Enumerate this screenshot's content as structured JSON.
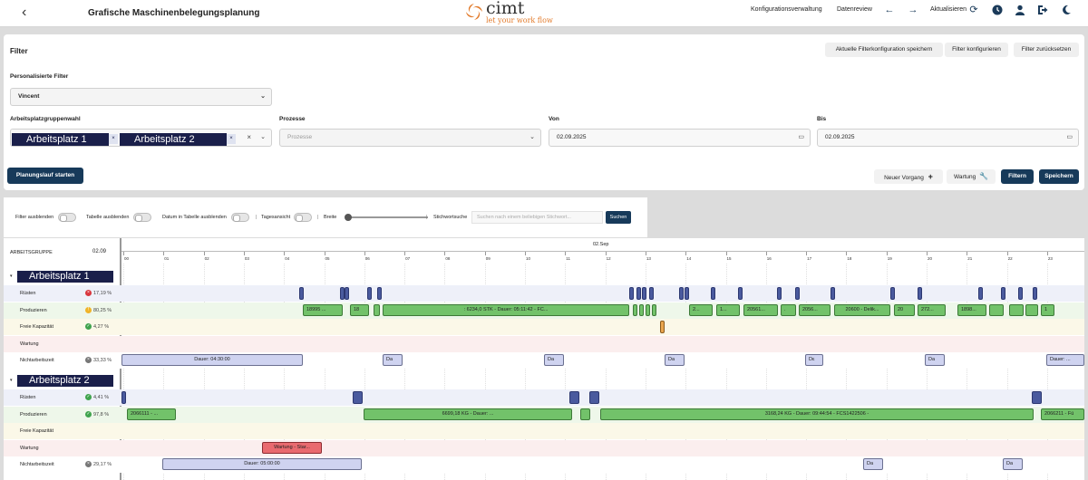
{
  "header": {
    "back_icon": "chevron-left-icon",
    "title": "Grafische Maschinenbelegungsplanung",
    "logo_text": "cimt",
    "logo_tagline": "let your work flow",
    "links": [
      "Konfigurationsverwaltung",
      "Datenreview"
    ],
    "refresh_label": "Aktualisieren"
  },
  "filter": {
    "title": "Filter",
    "btn_save_config": "Aktuelle Filterkonfiguration speichern",
    "btn_configure": "Filter konfigurieren",
    "btn_reset": "Filter zurücksetzen",
    "personal_label": "Personalisierte Filter",
    "personal_value": "Vincent",
    "group_label": "Arbeitsplatzgruppenwahl",
    "group_tags": [
      "Arbeitsplatz 1",
      "Arbeitsplatz 2"
    ],
    "process_label": "Prozesse",
    "process_placeholder": "Prozesse",
    "from_label": "Von",
    "from_value": "02.09.2025",
    "to_label": "Bis",
    "to_value": "02.09.2025",
    "btn_planning": "Planungslauf starten",
    "btn_new": "Neuer Vorgang",
    "btn_maintenance": "Wartung",
    "btn_filter": "Filtern",
    "btn_save": "Speichern"
  },
  "toolbar": {
    "hide_filter": "Filter ausblenden",
    "hide_table": "Tabelle ausblenden",
    "hide_date": "Datum in Tabelle ausblenden",
    "day_view": "Tagesansicht",
    "width": "Breite",
    "keyword_label": "Stichwortsuche",
    "keyword_placeholder": "Suchen nach einem beliebigen Stichwort...",
    "search_button": "Suchen"
  },
  "gantt": {
    "column_header": "ARBEITSGRUPPE",
    "date_short": "02.09",
    "day_label": "02.Sep",
    "hours": [
      "00",
      "01",
      "02",
      "03",
      "04",
      "05",
      "06",
      "07",
      "08",
      "09",
      "10",
      "11",
      "12",
      "13",
      "14",
      "15",
      "16",
      "17",
      "18",
      "19",
      "20",
      "21",
      "22",
      "23"
    ],
    "groups": [
      {
        "name": "Arbeitsplatz 1",
        "rows": [
          {
            "label": "Rüsten",
            "status": "error",
            "pct": "17,19 %"
          },
          {
            "label": "Produzieren",
            "status": "warning",
            "pct": "80,25 %"
          },
          {
            "label": "Freie Kapazität",
            "status": "ok",
            "pct": "4,27 %"
          },
          {
            "label": "Wartung",
            "status": "",
            "pct": ""
          },
          {
            "label": "Nichtarbeitszeit",
            "status": "neutral",
            "pct": "33,33 %"
          }
        ]
      },
      {
        "name": "Arbeitsplatz 2",
        "rows": [
          {
            "label": "Rüsten",
            "status": "ok",
            "pct": "4,41 %"
          },
          {
            "label": "Produzieren",
            "status": "ok",
            "pct": "97,8 %"
          },
          {
            "label": "Freie Kapazität",
            "status": "",
            "pct": ""
          },
          {
            "label": "Wartung",
            "status": "",
            "pct": ""
          },
          {
            "label": "Nichtarbeitszeit",
            "status": "neutral",
            "pct": "29,17 %"
          }
        ]
      }
    ],
    "bar_texts": {
      "g1_prod": [
        "18995 ...",
        "18",
        ": 6234,0 STK - Dauer: 05:11:42 - FC...",
        "2...",
        "1...",
        "20561...",
        ".",
        "2056...",
        "20600 - Delik...",
        "20",
        "272...",
        "1898...",
        "",
        "",
        "1"
      ],
      "g1_non": [
        "Dauer: 04:30:00",
        "Da",
        "Da",
        "Da",
        "Dε",
        "Da",
        "Dauer: ..."
      ],
      "g2_prod": [
        "2066111 - ...",
        "6699,18 KG - Dauer: ...",
        "",
        "3168,24 KG - Dauer: 09:44:54 - FCS1422506 -",
        "2066211 - Fü"
      ],
      "g2_maint": [
        "Wartung - Star..."
      ],
      "g2_non": [
        "Dauer: 05:00:00",
        "Da",
        "Da"
      ]
    }
  },
  "colors": {
    "primary": "#173a5a",
    "tag_bg": "#1a1f4a",
    "accent_orange": "#e27a2a",
    "bar_green": "#72c26a",
    "bar_setup": "#4a5a9e",
    "bar_nonwork": "#cfd3f0",
    "bar_maintenance": "#e96a6f",
    "row_setup": "#eef0f9",
    "row_produce": "#eef7ea",
    "row_free": "#fbf8e8",
    "row_maint": "#fbeeee",
    "row_nonwork": "#ffffff"
  }
}
